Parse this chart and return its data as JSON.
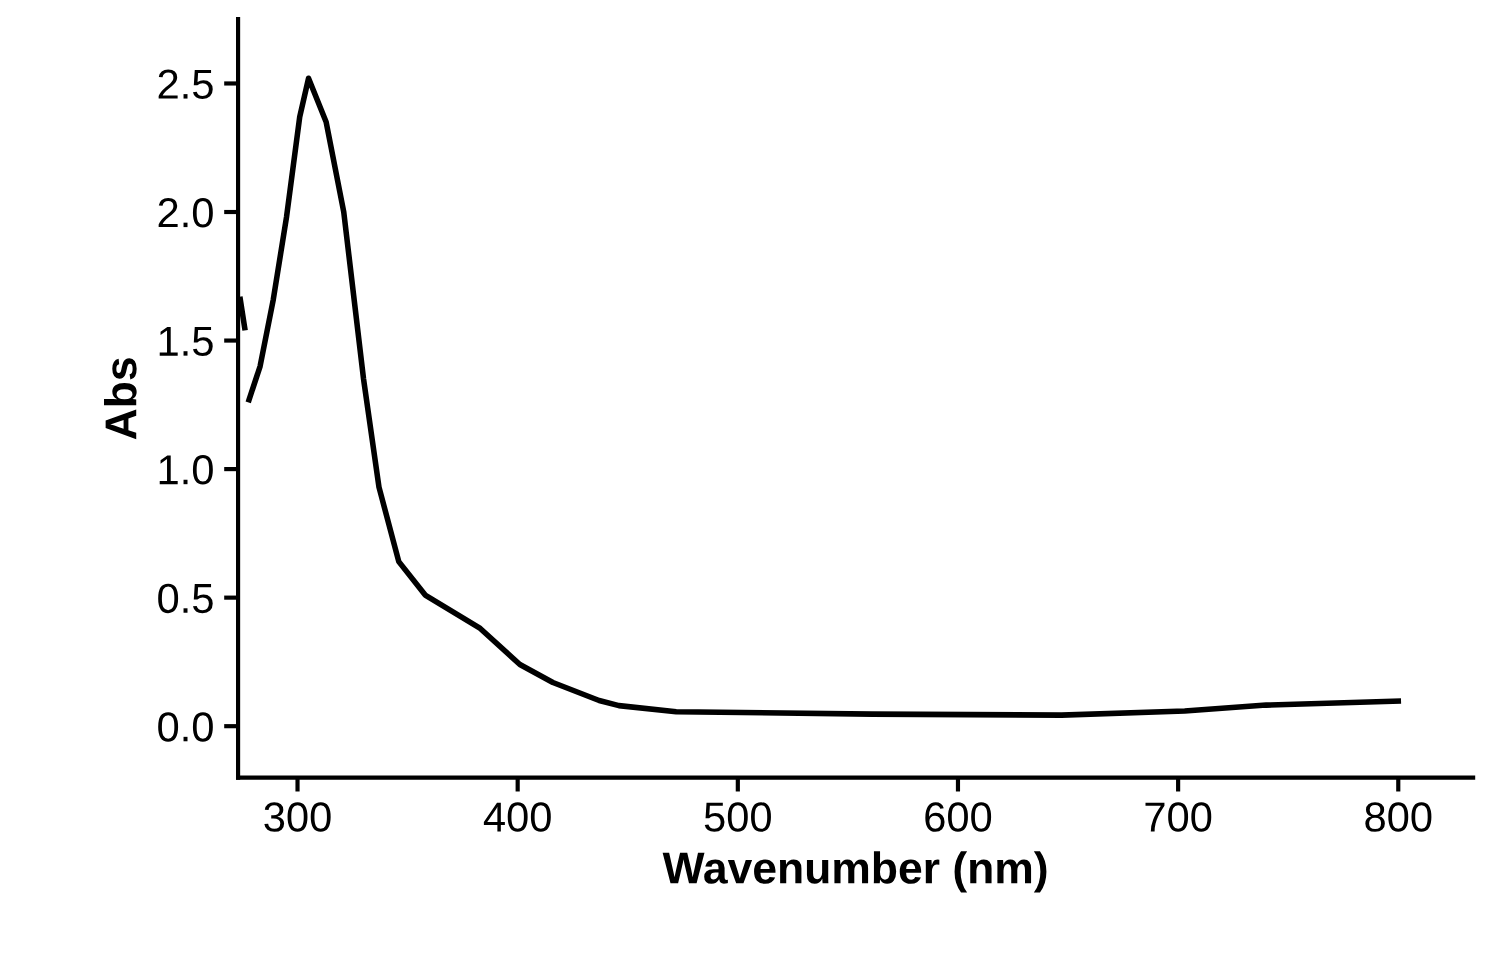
{
  "chart_data": {
    "type": "line",
    "xlabel": "Wavenumber (nm)",
    "ylabel": "Abs",
    "xlim": [
      273,
      834
    ],
    "ylim": [
      -0.2,
      2.75
    ],
    "xticks": [
      300,
      400,
      500,
      600,
      700,
      800
    ],
    "yticks": [
      {
        "value": 0,
        "label": "0.0"
      },
      0.5,
      {
        "value": 1,
        "label": "1.0"
      },
      1.5,
      {
        "value": 2,
        "label": "2.0"
      },
      2.5
    ],
    "grid": false,
    "legend": false,
    "marker": "none",
    "line_style": "solid",
    "series": [
      {
        "color": "#000000",
        "x": [
          274,
          276,
          277,
          278,
          283,
          289,
          295,
          301,
          305,
          313,
          321,
          330,
          337,
          346,
          358,
          383,
          401,
          416,
          437,
          446,
          472,
          561,
          647,
          703,
          740,
          800
        ],
        "values": [
          1.66,
          1.55,
          null,
          1.27,
          1.4,
          1.66,
          1.98,
          2.37,
          2.52,
          2.35,
          2.0,
          1.35,
          0.93,
          0.64,
          0.51,
          0.38,
          0.24,
          0.17,
          0.1,
          0.08,
          0.056,
          0.047,
          0.043,
          0.059,
          0.082,
          0.098
        ]
      }
    ]
  }
}
